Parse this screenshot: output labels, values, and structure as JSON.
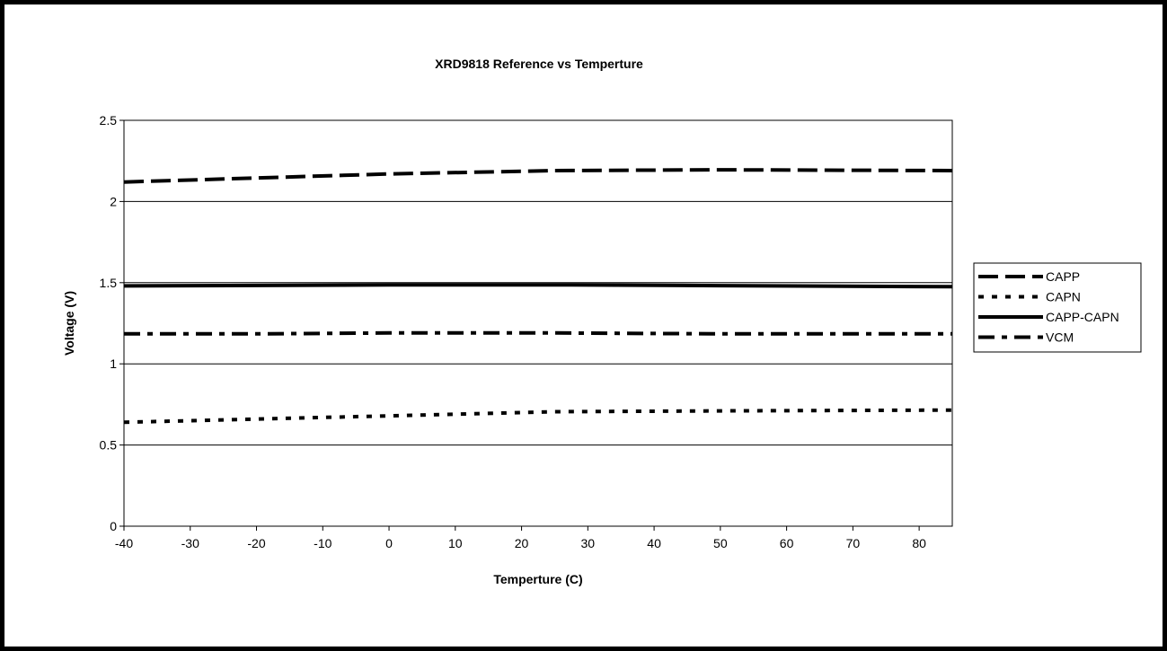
{
  "chart_data": {
    "type": "line",
    "title": "XRD9818 Reference vs Temperture",
    "xlabel": "Temperture (C)",
    "ylabel": "Voltage (V)",
    "xlim": [
      -40,
      85
    ],
    "ylim": [
      0,
      2.5
    ],
    "xticks": [
      -40,
      -30,
      -20,
      -10,
      0,
      10,
      20,
      30,
      40,
      50,
      60,
      70,
      80
    ],
    "yticks": [
      0,
      0.5,
      1,
      1.5,
      2,
      2.5
    ],
    "xtick_labels": [
      "-40",
      "-30",
      "-20",
      "-10",
      "0",
      "10",
      "20",
      "30",
      "40",
      "50",
      "60",
      "70",
      "80"
    ],
    "ytick_labels": [
      "0",
      "0.5",
      "1",
      "1.5",
      "2",
      "2.5"
    ],
    "grid": "horizontal",
    "legend_position": "right",
    "x": [
      -40,
      -20,
      0,
      25,
      50,
      85
    ],
    "series": [
      {
        "name": "CAPP",
        "style": "dashed",
        "values": [
          2.12,
          2.145,
          2.17,
          2.19,
          2.195,
          2.19
        ]
      },
      {
        "name": "CAPN",
        "style": "dotted",
        "values": [
          0.64,
          0.66,
          0.68,
          0.705,
          0.71,
          0.715
        ]
      },
      {
        "name": "CAPP-CAPN",
        "style": "solid",
        "values": [
          1.48,
          1.483,
          1.487,
          1.487,
          1.482,
          1.475
        ]
      },
      {
        "name": "VCM",
        "style": "dashdot",
        "values": [
          1.185,
          1.185,
          1.19,
          1.19,
          1.185,
          1.185
        ]
      }
    ]
  }
}
